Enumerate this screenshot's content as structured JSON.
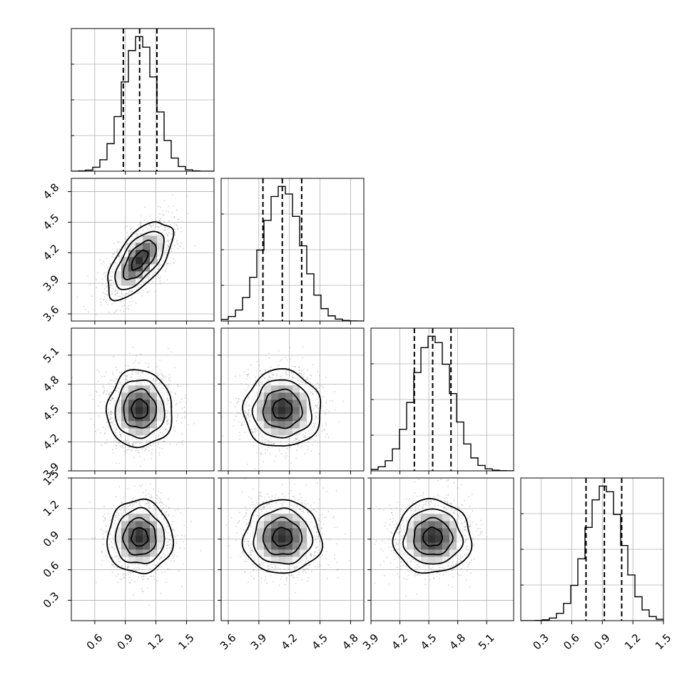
{
  "chart_data": {
    "type": "corner",
    "parameters": [
      {
        "name": "",
        "range": [
          0.37,
          1.77
        ],
        "ticks": [
          "0.6",
          "0.9",
          "1.2",
          "1.5"
        ],
        "mean": 1.04,
        "std": 0.16,
        "quantiles": [
          0.88,
          1.04,
          1.21
        ]
      },
      {
        "name": "",
        "range": [
          3.53,
          4.93
        ],
        "ticks": [
          "3.6",
          "3.9",
          "4.2",
          "4.5",
          "4.8"
        ],
        "mean": 4.13,
        "std": 0.19,
        "quantiles": [
          3.94,
          4.13,
          4.32
        ]
      },
      {
        "name": "",
        "range": [
          3.9,
          5.38
        ],
        "ticks": [
          "3.9",
          "4.2",
          "4.5",
          "4.8",
          "5.1"
        ],
        "mean": 4.54,
        "std": 0.2,
        "quantiles": [
          4.35,
          4.54,
          4.73
        ]
      },
      {
        "name": "",
        "range": [
          0.1,
          1.5
        ],
        "ticks": [
          "0.3",
          "0.6",
          "0.9",
          "1.2",
          "1.5"
        ],
        "mean": 0.92,
        "std": 0.18,
        "quantiles": [
          0.74,
          0.92,
          1.09
        ]
      }
    ],
    "correlations": {
      "1-0": 0.62,
      "2-0": 0.0,
      "2-1": 0.0,
      "3-0": 0.0,
      "3-1": 0.0,
      "3-2": 0.0
    },
    "histogram_bins": 20,
    "contour_levels_sigma": [
      0.5,
      1.0,
      1.5,
      2.0
    ],
    "quantile_line_style": "dashed",
    "grid": true
  }
}
